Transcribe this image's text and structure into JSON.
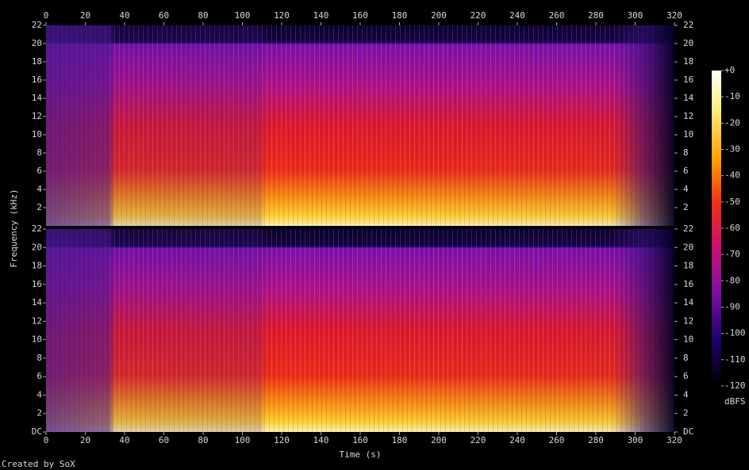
{
  "chart_data": [
    {
      "type": "heatmap",
      "xlim": [
        0,
        320
      ],
      "xticks": [
        0,
        20,
        40,
        60,
        80,
        100,
        120,
        140,
        160,
        180,
        200,
        220,
        240,
        260,
        280,
        300,
        320
      ],
      "ylim": [
        0,
        22
      ],
      "yticks": [
        2,
        4,
        6,
        8,
        10,
        12,
        14,
        16,
        18,
        20,
        22
      ]
    },
    {
      "type": "heatmap",
      "xlim": [
        0,
        320
      ],
      "xticks": [
        0,
        20,
        40,
        60,
        80,
        100,
        120,
        140,
        160,
        180,
        200,
        220,
        240,
        260,
        280,
        300,
        320
      ],
      "ylim": [
        0,
        22
      ],
      "yticks": [
        {
          "value": 0,
          "label": "DC"
        },
        2,
        4,
        6,
        8,
        10,
        12,
        14,
        16,
        18,
        20,
        22
      ],
      "xlabel": "Time (s)"
    }
  ],
  "ylabel": "Frequency (kHz)",
  "colorbar": {
    "label": "dBFS",
    "zlim": [
      -120,
      0
    ],
    "zticks": [
      {
        "value": 0,
        "label": "+0"
      },
      -10,
      -20,
      -30,
      -40,
      -50,
      -60,
      -70,
      -80,
      -90,
      -100,
      -110,
      -120
    ]
  },
  "footer": "Created by SoX"
}
